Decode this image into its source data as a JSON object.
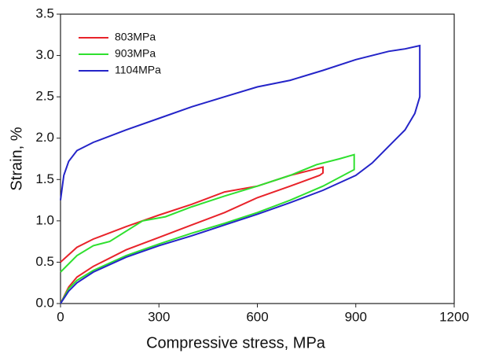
{
  "chart_data": {
    "type": "line",
    "xlabel": "Compressive stress, MPa",
    "ylabel": "Strain, %",
    "xlim": [
      0,
      1200
    ],
    "xticks": [
      0,
      300,
      600,
      900,
      1200
    ],
    "ylim": [
      0,
      3.5
    ],
    "yticks": [
      {
        "value": 0,
        "label": "0.0"
      },
      0.5,
      {
        "value": 1,
        "label": "1.0"
      },
      1.5,
      {
        "value": 2,
        "label": "2.0"
      },
      2.5,
      {
        "value": 3,
        "label": "3.0"
      },
      3.5
    ],
    "legend": "upper left",
    "series": [
      {
        "name": "803MPa",
        "color": "#e8232a",
        "x": [
          0,
          25,
          50,
          100,
          200,
          300,
          400,
          500,
          600,
          650,
          700,
          790,
          800,
          800,
          750,
          700,
          600,
          500,
          400,
          300,
          200,
          100,
          50,
          0
        ],
        "values": [
          0,
          0.2,
          0.32,
          0.45,
          0.65,
          0.8,
          0.95,
          1.1,
          1.28,
          1.35,
          1.42,
          1.55,
          1.58,
          1.65,
          1.6,
          1.55,
          1.42,
          1.35,
          1.2,
          1.07,
          0.93,
          0.78,
          0.68,
          0.5
        ]
      },
      {
        "name": "903MPa",
        "color": "#2fe02f",
        "x": [
          0,
          25,
          50,
          100,
          200,
          300,
          400,
          500,
          600,
          700,
          800,
          895,
          895,
          850,
          780,
          700,
          600,
          500,
          400,
          320,
          250,
          150,
          100,
          50,
          0
        ],
        "values": [
          0,
          0.18,
          0.28,
          0.4,
          0.58,
          0.72,
          0.85,
          0.97,
          1.1,
          1.25,
          1.42,
          1.62,
          1.8,
          1.75,
          1.68,
          1.55,
          1.42,
          1.3,
          1.17,
          1.05,
          1.0,
          0.75,
          0.7,
          0.58,
          0.38
        ]
      },
      {
        "name": "1104MPa",
        "color": "#2424c8",
        "x": [
          0,
          25,
          50,
          100,
          200,
          300,
          400,
          500,
          600,
          700,
          800,
          900,
          950,
          1000,
          1050,
          1080,
          1095,
          1095,
          1050,
          1000,
          900,
          800,
          700,
          600,
          500,
          400,
          300,
          200,
          100,
          50,
          25,
          10,
          0
        ],
        "values": [
          0,
          0.15,
          0.25,
          0.38,
          0.56,
          0.7,
          0.82,
          0.95,
          1.08,
          1.22,
          1.37,
          1.55,
          1.7,
          1.9,
          2.1,
          2.3,
          2.5,
          3.12,
          3.08,
          3.05,
          2.95,
          2.82,
          2.7,
          2.62,
          2.5,
          2.38,
          2.24,
          2.1,
          1.95,
          1.85,
          1.72,
          1.55,
          1.25
        ]
      }
    ]
  }
}
